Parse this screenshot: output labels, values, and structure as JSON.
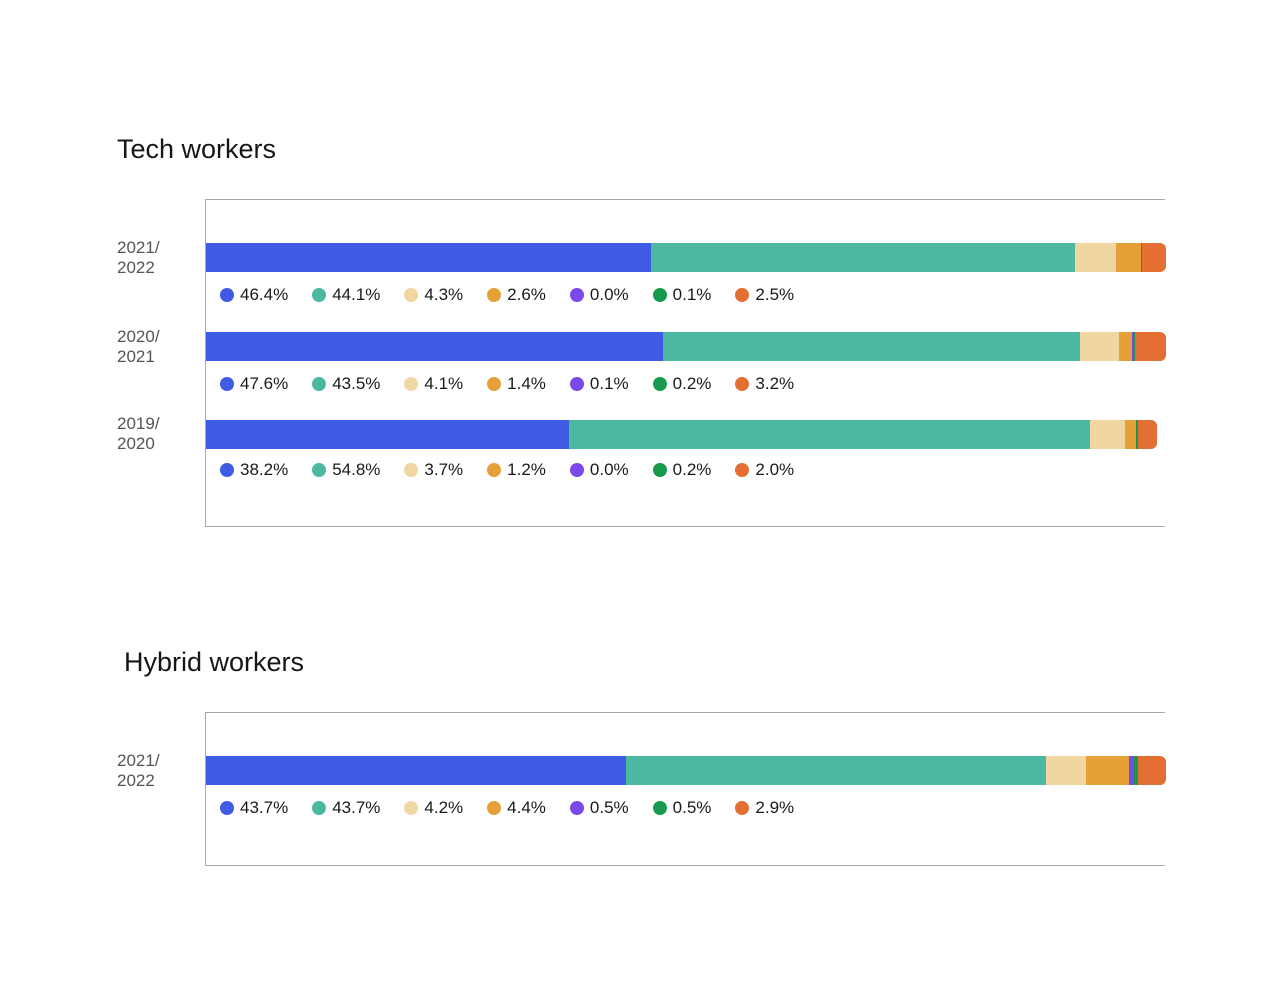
{
  "colors": [
    "#3f5be3",
    "#4cb8a2",
    "#f0d6a0",
    "#e5a038",
    "#7b48ea",
    "#179a4c",
    "#e36f33"
  ],
  "chart_data": [
    {
      "type": "bar",
      "orientation": "horizontal",
      "stacked": true,
      "normalized": true,
      "title": "Tech workers",
      "categories": [
        "2021/ 2022",
        "2020/ 2021",
        "2019/ 2020"
      ],
      "rows": [
        {
          "label_line1": "2021/",
          "label_line2": "2022",
          "values": [
            46.4,
            44.1,
            4.3,
            2.6,
            0.0,
            0.1,
            2.5
          ],
          "labels": [
            "46.4%",
            "44.1%",
            "4.3%",
            "2.6%",
            "0.0%",
            "0.1%",
            "2.5%"
          ]
        },
        {
          "label_line1": "2020/",
          "label_line2": "2021",
          "values": [
            47.6,
            43.5,
            4.1,
            1.4,
            0.1,
            0.2,
            3.2
          ],
          "labels": [
            "47.6%",
            "43.5%",
            "4.1%",
            "1.4%",
            "0.1%",
            "0.2%",
            "3.2%"
          ]
        },
        {
          "label_line1": "2019/",
          "label_line2": "2020",
          "values": [
            38.2,
            54.8,
            3.7,
            1.2,
            0.0,
            0.2,
            2.0
          ],
          "labels": [
            "38.2%",
            "54.8%",
            "3.7%",
            "1.2%",
            "0.0%",
            "0.2%",
            "2.0%"
          ]
        }
      ],
      "xlim": [
        0,
        100
      ],
      "grid": false
    },
    {
      "type": "bar",
      "orientation": "horizontal",
      "stacked": true,
      "normalized": true,
      "title": "Hybrid workers",
      "categories": [
        "2021/ 2022"
      ],
      "rows": [
        {
          "label_line1": "2021/",
          "label_line2": "2022",
          "values": [
            43.7,
            43.7,
            4.2,
            4.4,
            0.5,
            0.5,
            2.9
          ],
          "labels": [
            "43.7%",
            "43.7%",
            "4.2%",
            "4.4%",
            "0.5%",
            "0.5%",
            "2.9%"
          ]
        }
      ],
      "xlim": [
        0,
        100
      ],
      "grid": false
    }
  ]
}
